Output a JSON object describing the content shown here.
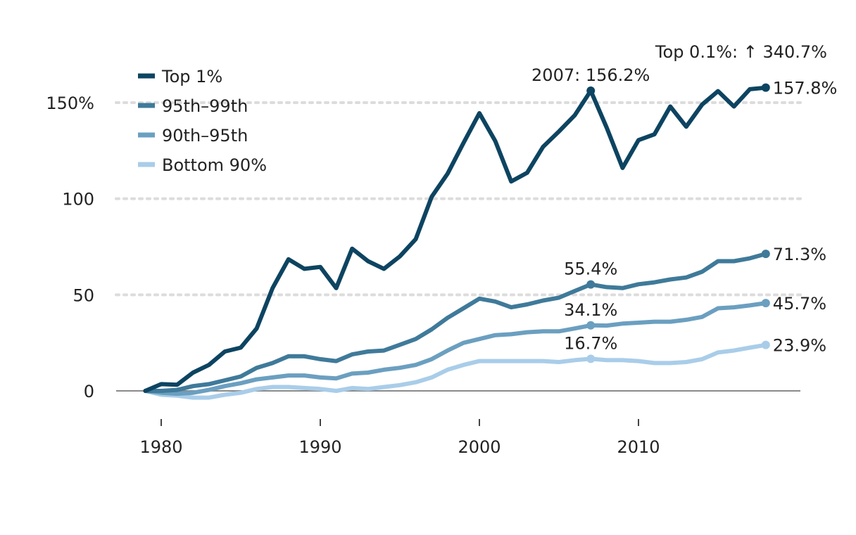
{
  "chart_data": {
    "type": "line",
    "title": "",
    "xlabel": "",
    "ylabel": "",
    "xlim": [
      1977,
      2020
    ],
    "ylim": [
      -20,
      175
    ],
    "x_ticks": [
      {
        "value": 1980,
        "label": "1980"
      },
      {
        "value": 1990,
        "label": "1990"
      },
      {
        "value": 2000,
        "label": "2000"
      },
      {
        "value": 2010,
        "label": "2010"
      }
    ],
    "y_ticks": [
      {
        "value": 0,
        "label": "0"
      },
      {
        "value": 50,
        "label": "50"
      },
      {
        "value": 100,
        "label": "100"
      },
      {
        "value": 150,
        "label": "150%"
      }
    ],
    "grid": "horizontal dotted",
    "legend_position": "top-left",
    "x": [
      1979,
      1980,
      1981,
      1982,
      1983,
      1984,
      1985,
      1986,
      1987,
      1988,
      1989,
      1990,
      1991,
      1992,
      1993,
      1994,
      1995,
      1996,
      1997,
      1998,
      1999,
      2000,
      2001,
      2002,
      2003,
      2004,
      2005,
      2006,
      2007,
      2008,
      2009,
      2010,
      2011,
      2012,
      2013,
      2014,
      2015,
      2016,
      2017,
      2018
    ],
    "series": [
      {
        "name": "Top 1%",
        "color": "#0d4461",
        "values": [
          0,
          3.5,
          3.2,
          9.5,
          13.5,
          20.5,
          22.5,
          32.5,
          53.5,
          68.5,
          63.5,
          64.5,
          53.5,
          74.0,
          67.5,
          63.5,
          70.0,
          79.0,
          101.0,
          113.0,
          129.0,
          144.5,
          130.0,
          109.0,
          113.5,
          127.0,
          135.0,
          143.5,
          156.2,
          137.0,
          116.0,
          130.5,
          133.5,
          148.0,
          137.5,
          149.0,
          156.0,
          148.0,
          157.0,
          157.8
        ]
      },
      {
        "name": "95th–99th",
        "color": "#3f7a9a",
        "values": [
          0,
          0,
          0.5,
          2.5,
          3.5,
          5.5,
          7.5,
          12.0,
          14.5,
          18.0,
          18.0,
          16.5,
          15.5,
          19.0,
          20.5,
          21.0,
          24.0,
          27.0,
          32.0,
          38.0,
          43.0,
          48.0,
          46.5,
          43.5,
          45.0,
          47.0,
          48.5,
          52.0,
          55.4,
          54.0,
          53.5,
          55.5,
          56.5,
          58.0,
          59.0,
          62.0,
          67.5,
          67.5,
          69.0,
          71.3
        ]
      },
      {
        "name": "90th–95th",
        "color": "#6b9fc0",
        "values": [
          0,
          -1.0,
          -1.5,
          -1.0,
          0.5,
          2.5,
          4.0,
          6.0,
          7.0,
          8.0,
          8.0,
          7.0,
          6.5,
          9.0,
          9.5,
          11.0,
          12.0,
          13.5,
          16.5,
          21.0,
          25.0,
          27.0,
          29.0,
          29.5,
          30.5,
          31.0,
          31.0,
          32.5,
          34.1,
          34.0,
          35.0,
          35.5,
          36.0,
          36.0,
          37.0,
          38.5,
          43.0,
          43.5,
          44.5,
          45.7
        ]
      },
      {
        "name": "Bottom 90%",
        "color": "#a9cde9",
        "values": [
          0,
          -2.0,
          -2.5,
          -3.5,
          -3.5,
          -2.0,
          -1.0,
          1.0,
          2.0,
          2.0,
          1.5,
          1.0,
          0,
          1.5,
          1.0,
          2.0,
          3.0,
          4.5,
          7.0,
          11.0,
          13.5,
          15.5,
          15.5,
          15.5,
          15.5,
          15.5,
          15.0,
          16.0,
          16.7,
          16.0,
          16.0,
          15.5,
          14.5,
          14.5,
          15.0,
          16.5,
          20.0,
          21.0,
          22.5,
          23.9
        ]
      }
    ],
    "annotations": [
      {
        "text": "2007: 156.2%",
        "x": 2007,
        "y": 156.2,
        "series": "Top 1%"
      },
      {
        "text": "55.4%",
        "x": 2007,
        "y": 55.4,
        "series": "95th–99th"
      },
      {
        "text": "34.1%",
        "x": 2007,
        "y": 34.1,
        "series": "90th–95th"
      },
      {
        "text": "16.7%",
        "x": 2007,
        "y": 16.7,
        "series": "Bottom 90%"
      },
      {
        "text": "Top 0.1%: ↑ 340.7%",
        "series": "Top 0.1%"
      }
    ],
    "end_labels": [
      {
        "text": "157.8%",
        "x": 2018,
        "y": 157.8,
        "series": "Top 1%"
      },
      {
        "text": "71.3%",
        "x": 2018,
        "y": 71.3,
        "series": "95th–99th"
      },
      {
        "text": "45.7%",
        "x": 2018,
        "y": 45.7,
        "series": "90th–95th"
      },
      {
        "text": "23.9%",
        "x": 2018,
        "y": 23.9,
        "series": "Bottom 90%"
      }
    ]
  }
}
